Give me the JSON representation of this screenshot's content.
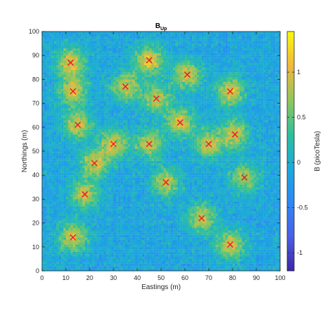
{
  "chart_data": {
    "type": "heatmap",
    "title": "B",
    "title_subscript": "Up",
    "xlabel": "Eastings (m)",
    "ylabel": "Northings (m)",
    "colorbar_label": "B (picoTesla)",
    "xlim": [
      0,
      100
    ],
    "ylim": [
      0,
      100
    ],
    "clim": [
      -1.2,
      1.45
    ],
    "x_ticks": [
      "0",
      "10",
      "20",
      "30",
      "40",
      "50",
      "60",
      "70",
      "80",
      "90",
      "100"
    ],
    "y_ticks": [
      "0",
      "10",
      "20",
      "30",
      "40",
      "50",
      "60",
      "70",
      "80",
      "90",
      "100"
    ],
    "colorbar_ticks": [
      "-1",
      "-0.5",
      "0",
      "0.5",
      "1"
    ],
    "colorbar_tick_values": [
      -1,
      -0.5,
      0,
      0.5,
      1
    ],
    "colormap": "parula",
    "colormap_stops": [
      "#3e26a8",
      "#4a5fe7",
      "#2e87f7",
      "#1aaadb",
      "#2ec09c",
      "#93c659",
      "#f2b73c",
      "#f8fa0d"
    ],
    "background_field_value": -0.1,
    "grid": false,
    "sources": [
      {
        "x": 12,
        "y": 87,
        "peak": 1.15
      },
      {
        "x": 45,
        "y": 88,
        "peak": 1.2
      },
      {
        "x": 61,
        "y": 82,
        "peak": 1.05
      },
      {
        "x": 13,
        "y": 75,
        "peak": 1.05
      },
      {
        "x": 35,
        "y": 77,
        "peak": 1.0
      },
      {
        "x": 79,
        "y": 75,
        "peak": 1.1
      },
      {
        "x": 48,
        "y": 72,
        "peak": 0.95
      },
      {
        "x": 15,
        "y": 61,
        "peak": 1.0
      },
      {
        "x": 58,
        "y": 62,
        "peak": 1.05
      },
      {
        "x": 30,
        "y": 53,
        "peak": 1.05
      },
      {
        "x": 45,
        "y": 53,
        "peak": 0.95
      },
      {
        "x": 70,
        "y": 53,
        "peak": 1.0
      },
      {
        "x": 81,
        "y": 57,
        "peak": 1.05
      },
      {
        "x": 22,
        "y": 45,
        "peak": 1.0
      },
      {
        "x": 52,
        "y": 37,
        "peak": 0.95
      },
      {
        "x": 85,
        "y": 39,
        "peak": 0.9
      },
      {
        "x": 18,
        "y": 32,
        "peak": 0.95
      },
      {
        "x": 67,
        "y": 22,
        "peak": 1.0
      },
      {
        "x": 13,
        "y": 14,
        "peak": 1.05
      },
      {
        "x": 79,
        "y": 11,
        "peak": 1.05
      }
    ],
    "marker": {
      "symbol": "x",
      "color": "#e8202a"
    }
  }
}
